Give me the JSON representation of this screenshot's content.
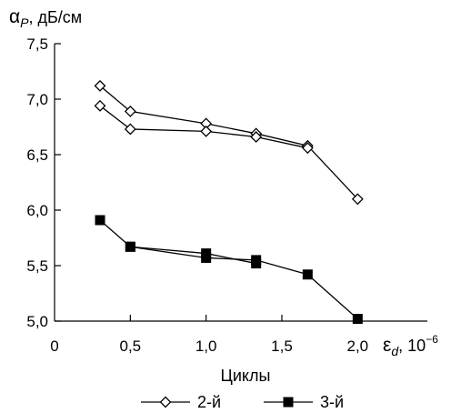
{
  "chart_data": {
    "type": "line",
    "ylabel": {
      "greek": "α",
      "sub": "P",
      "unit": ", дБ/см"
    },
    "xlabel": {
      "greek": "ε",
      "sub": "d",
      "unit": ", 10",
      "exp": "−6"
    },
    "x_title": "Циклы",
    "xlim": [
      0,
      2.4
    ],
    "ylim": [
      5.0,
      7.5
    ],
    "x_ticks": [
      0,
      0.5,
      1.0,
      1.5,
      2.0
    ],
    "x_tick_labels": [
      "0",
      "0,5",
      "1,0",
      "1,5",
      "2,0"
    ],
    "y_ticks": [
      5.0,
      5.5,
      6.0,
      6.5,
      7.0,
      7.5
    ],
    "y_tick_labels": [
      "5,0",
      "5,5",
      "6,0",
      "6,5",
      "7,0",
      "7,5"
    ],
    "grid": false,
    "legend_position": "bottom",
    "series": [
      {
        "name": "2-й",
        "marker": "open-diamond",
        "color": "#000000",
        "x": [
          0.3,
          0.5,
          1.0,
          1.33,
          1.67,
          2.0
        ],
        "y": [
          7.12,
          6.89,
          6.78,
          6.69,
          6.58,
          6.1
        ]
      },
      {
        "name": "2-й",
        "marker": "open-diamond",
        "color": "#000000",
        "legend": false,
        "x": [
          0.3,
          0.5,
          1.0,
          1.33,
          1.67
        ],
        "y": [
          6.94,
          6.73,
          6.71,
          6.66,
          6.56
        ]
      },
      {
        "name": "3-й",
        "marker": "filled-square",
        "color": "#000000",
        "x": [
          0.3,
          0.5,
          1.0,
          1.33,
          1.67,
          2.0
        ],
        "y": [
          5.91,
          5.67,
          5.57,
          5.55,
          5.42,
          5.02
        ]
      },
      {
        "name": "3-й",
        "marker": "filled-square",
        "color": "#000000",
        "legend": false,
        "x": [
          0.5,
          1.0,
          1.33
        ],
        "y": [
          5.67,
          5.61,
          5.52
        ]
      }
    ]
  }
}
